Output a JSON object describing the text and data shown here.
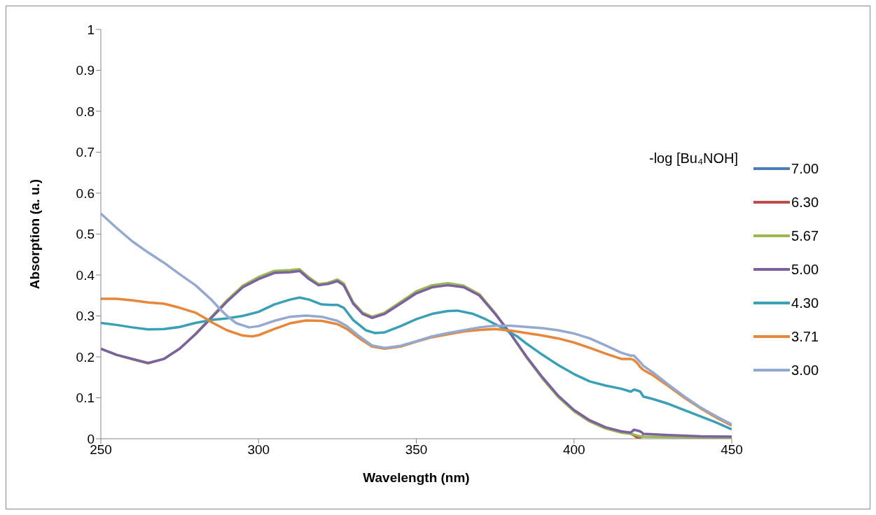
{
  "chart_data": {
    "type": "line",
    "xlabel": "Wavelength (nm)",
    "ylabel": "Absorption (a. u.)",
    "legend_title": "-log [Bu₄NOH]",
    "legend": "right",
    "grid": false,
    "marker": "none",
    "line_style": "solid",
    "xlim": [
      250,
      450
    ],
    "xticks": [
      250,
      300,
      350,
      400,
      450
    ],
    "ylim": [
      0,
      1
    ],
    "yticks": [
      0,
      0.1,
      0.2,
      0.3,
      0.4,
      0.5,
      0.6,
      0.7,
      0.8,
      0.9,
      1
    ],
    "series": [
      {
        "name": "7.00",
        "color": "#4a7ebb"
      },
      {
        "name": "6.30",
        "color": "#be4b48",
        "x": [
          418,
          419,
          420,
          421,
          422
        ],
        "values": [
          0.012,
          0.008,
          0.003,
          0.003,
          0.008
        ]
      },
      {
        "name": "5.67",
        "color": "#98b954",
        "x": [
          250,
          255,
          260,
          265,
          270,
          275,
          280,
          285,
          290,
          295,
          300,
          305,
          310,
          313,
          316,
          319,
          322,
          325,
          327,
          330,
          333,
          336,
          340,
          345,
          350,
          355,
          360,
          365,
          370,
          375,
          380,
          385,
          390,
          395,
          400,
          405,
          410,
          415,
          418,
          419,
          420,
          421,
          422,
          430,
          440,
          450
        ],
        "values": [
          0.22,
          0.205,
          0.194,
          0.184,
          0.195,
          0.22,
          0.256,
          0.297,
          0.338,
          0.374,
          0.395,
          0.41,
          0.412,
          0.414,
          0.394,
          0.378,
          0.381,
          0.389,
          0.379,
          0.333,
          0.308,
          0.298,
          0.308,
          0.334,
          0.36,
          0.375,
          0.38,
          0.374,
          0.353,
          0.307,
          0.255,
          0.198,
          0.147,
          0.102,
          0.067,
          0.042,
          0.025,
          0.015,
          0.012,
          0.01,
          0.008,
          0.006,
          0.005,
          0.004,
          0.003,
          0.002
        ]
      },
      {
        "name": "5.00",
        "color": "#7d60a0",
        "x": [
          250,
          255,
          260,
          265,
          270,
          275,
          280,
          285,
          290,
          295,
          300,
          305,
          310,
          313,
          316,
          319,
          322,
          325,
          327,
          330,
          333,
          336,
          340,
          345,
          350,
          355,
          360,
          365,
          370,
          375,
          380,
          385,
          390,
          395,
          400,
          405,
          410,
          415,
          418,
          419,
          420,
          421,
          422,
          430,
          440,
          450
        ],
        "values": [
          0.22,
          0.205,
          0.195,
          0.185,
          0.195,
          0.22,
          0.255,
          0.295,
          0.335,
          0.37,
          0.39,
          0.405,
          0.407,
          0.41,
          0.39,
          0.375,
          0.378,
          0.385,
          0.375,
          0.33,
          0.305,
          0.295,
          0.305,
          0.33,
          0.355,
          0.37,
          0.375,
          0.37,
          0.35,
          0.305,
          0.255,
          0.2,
          0.15,
          0.105,
          0.07,
          0.045,
          0.028,
          0.018,
          0.015,
          0.022,
          0.02,
          0.018,
          0.012,
          0.009,
          0.006,
          0.005
        ]
      },
      {
        "name": "4.30",
        "color": "#3aa0b5",
        "x": [
          250,
          255,
          260,
          265,
          270,
          275,
          280,
          285,
          290,
          295,
          300,
          305,
          310,
          313,
          316,
          320,
          323,
          325,
          327,
          330,
          334,
          337,
          340,
          345,
          350,
          355,
          360,
          363,
          368,
          372,
          377,
          382,
          385,
          390,
          395,
          400,
          405,
          410,
          415,
          418,
          419,
          420,
          421,
          422,
          425,
          430,
          435,
          440,
          445,
          450
        ],
        "values": [
          0.283,
          0.278,
          0.272,
          0.267,
          0.268,
          0.273,
          0.283,
          0.29,
          0.294,
          0.3,
          0.31,
          0.328,
          0.34,
          0.345,
          0.34,
          0.328,
          0.327,
          0.327,
          0.32,
          0.29,
          0.265,
          0.258,
          0.26,
          0.275,
          0.292,
          0.305,
          0.312,
          0.313,
          0.305,
          0.292,
          0.272,
          0.25,
          0.232,
          0.205,
          0.18,
          0.158,
          0.14,
          0.13,
          0.122,
          0.115,
          0.12,
          0.118,
          0.115,
          0.103,
          0.097,
          0.085,
          0.07,
          0.055,
          0.04,
          0.023
        ]
      },
      {
        "name": "3.71",
        "color": "#e8863a",
        "x": [
          250,
          255,
          260,
          265,
          270,
          275,
          280,
          283,
          285,
          290,
          295,
          298,
          300,
          305,
          310,
          315,
          320,
          325,
          328,
          332,
          336,
          340,
          345,
          350,
          355,
          360,
          365,
          370,
          375,
          380,
          385,
          390,
          395,
          400,
          405,
          410,
          415,
          418,
          419,
          420,
          421,
          422,
          425,
          430,
          435,
          440,
          445,
          450
        ],
        "values": [
          0.342,
          0.342,
          0.338,
          0.333,
          0.33,
          0.32,
          0.308,
          0.295,
          0.285,
          0.265,
          0.252,
          0.25,
          0.253,
          0.268,
          0.282,
          0.289,
          0.288,
          0.28,
          0.268,
          0.245,
          0.225,
          0.22,
          0.225,
          0.237,
          0.248,
          0.255,
          0.262,
          0.266,
          0.268,
          0.264,
          0.258,
          0.252,
          0.245,
          0.235,
          0.222,
          0.208,
          0.195,
          0.195,
          0.192,
          0.185,
          0.175,
          0.168,
          0.155,
          0.128,
          0.1,
          0.075,
          0.052,
          0.032
        ]
      },
      {
        "name": "3.00",
        "color": "#93a9cf",
        "x": [
          250,
          255,
          260,
          265,
          270,
          275,
          280,
          285,
          288,
          290,
          293,
          297,
          300,
          305,
          310,
          315,
          320,
          325,
          328,
          332,
          336,
          340,
          345,
          350,
          355,
          360,
          365,
          370,
          375,
          380,
          385,
          390,
          395,
          400,
          405,
          410,
          415,
          418,
          419,
          420,
          421,
          422,
          425,
          430,
          435,
          440,
          445,
          450
        ],
        "values": [
          0.55,
          0.515,
          0.482,
          0.455,
          0.43,
          0.402,
          0.375,
          0.34,
          0.315,
          0.3,
          0.282,
          0.272,
          0.275,
          0.288,
          0.298,
          0.301,
          0.298,
          0.288,
          0.275,
          0.25,
          0.228,
          0.222,
          0.227,
          0.238,
          0.25,
          0.258,
          0.265,
          0.272,
          0.276,
          0.276,
          0.273,
          0.27,
          0.265,
          0.257,
          0.245,
          0.228,
          0.21,
          0.203,
          0.203,
          0.195,
          0.187,
          0.178,
          0.162,
          0.132,
          0.103,
          0.077,
          0.055,
          0.035
        ]
      }
    ]
  }
}
